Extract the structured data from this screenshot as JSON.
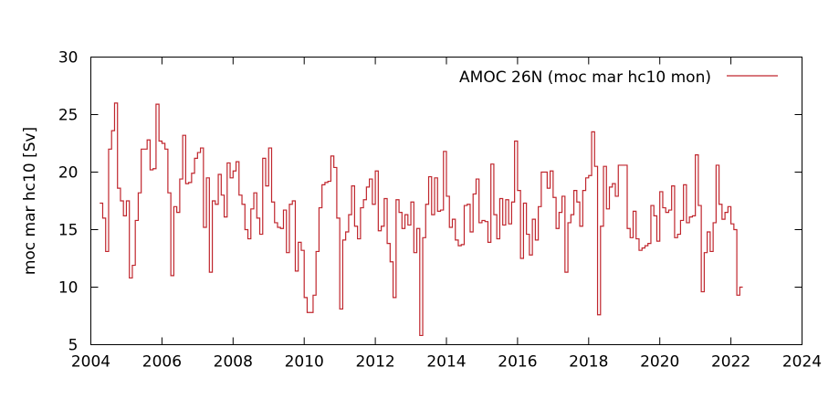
{
  "chart_data": {
    "type": "line",
    "style": "steps",
    "title": "",
    "xlabel": "",
    "ylabel": "moc mar hc10 [Sv]",
    "xlim": [
      2004,
      2024
    ],
    "ylim": [
      5,
      30
    ],
    "xticks": [
      2004,
      2006,
      2008,
      2010,
      2012,
      2014,
      2016,
      2018,
      2020,
      2022,
      2024
    ],
    "yticks": [
      5,
      10,
      15,
      20,
      25,
      30
    ],
    "grid": false,
    "legend_position": "top-right",
    "series": [
      {
        "name": "AMOC 26N (moc mar hc10 mon)",
        "color": "#c0262d",
        "start": "2004-04",
        "frequency": "monthly",
        "values": [
          17.3,
          16,
          13.1,
          22,
          23.6,
          26,
          18.6,
          17.5,
          16.2,
          17.5,
          10.8,
          11.9,
          15.8,
          18.2,
          22,
          22,
          22.8,
          20.2,
          20.3,
          25.9,
          22.7,
          22.5,
          22,
          18.2,
          11,
          17,
          16.5,
          19.4,
          23.2,
          19,
          19.1,
          19.9,
          21.2,
          21.7,
          22.1,
          15.2,
          19.5,
          11.3,
          17.5,
          17.2,
          19.8,
          18,
          16.1,
          20.8,
          19.5,
          20.1,
          20.9,
          18,
          17.2,
          15,
          14.2,
          16.8,
          18.2,
          16,
          14.6,
          21.2,
          18.8,
          22.1,
          17.4,
          15.6,
          15.2,
          15.1,
          16.7,
          13,
          17.2,
          17.5,
          11.4,
          13.9,
          13.2,
          9.1,
          7.8,
          7.8,
          9.3,
          13.1,
          16.9,
          18.9,
          19.1,
          19.2,
          21.4,
          20.4,
          16,
          8.1,
          14.1,
          14.8,
          16.3,
          18.8,
          15.3,
          14.2,
          16.9,
          17.6,
          18.7,
          19.4,
          17.2,
          20.1,
          14.9,
          15.3,
          17.7,
          13.8,
          12.2,
          9.1,
          17.6,
          16.5,
          15.1,
          16.3,
          15.4,
          17.4,
          13,
          15.1,
          5.8,
          14.3,
          17.2,
          19.6,
          16.3,
          19.5,
          16.6,
          16.7,
          21.8,
          17.9,
          15.2,
          15.9,
          14.1,
          13.6,
          13.7,
          17.1,
          17.2,
          14.8,
          18.1,
          19.4,
          15.6,
          15.8,
          15.7,
          13.9,
          20.7,
          16.3,
          14.2,
          17.7,
          15.4,
          17.6,
          15.5,
          17.4,
          22.7,
          18.4,
          12.5,
          17.3,
          14.6,
          12.8,
          15.9,
          14.1,
          17,
          20,
          20,
          18.6,
          20.1,
          17.8,
          15.1,
          16.5,
          17.9,
          11.3,
          15.6,
          16.3,
          18.4,
          17.4,
          15.3,
          18.4,
          19.5,
          19.7,
          23.5,
          20.5,
          7.6,
          15.3,
          20.5,
          16.8,
          18.7,
          19,
          17.9,
          20.6,
          20.6,
          20.6,
          15.1,
          14.3,
          16.6,
          14.2,
          13.2,
          13.4,
          13.6,
          13.8,
          17.1,
          16.2,
          14,
          18.3,
          16.9,
          16.5,
          16.7,
          18.8,
          14.3,
          14.6,
          15.8,
          18.9,
          15.6,
          16.1,
          16.2,
          21.5,
          17.1,
          9.6,
          13,
          14.8,
          13.1,
          15.6,
          20.6,
          17.2,
          15.9,
          16.5,
          17,
          15.5,
          15,
          9.3,
          10
        ]
      }
    ]
  }
}
